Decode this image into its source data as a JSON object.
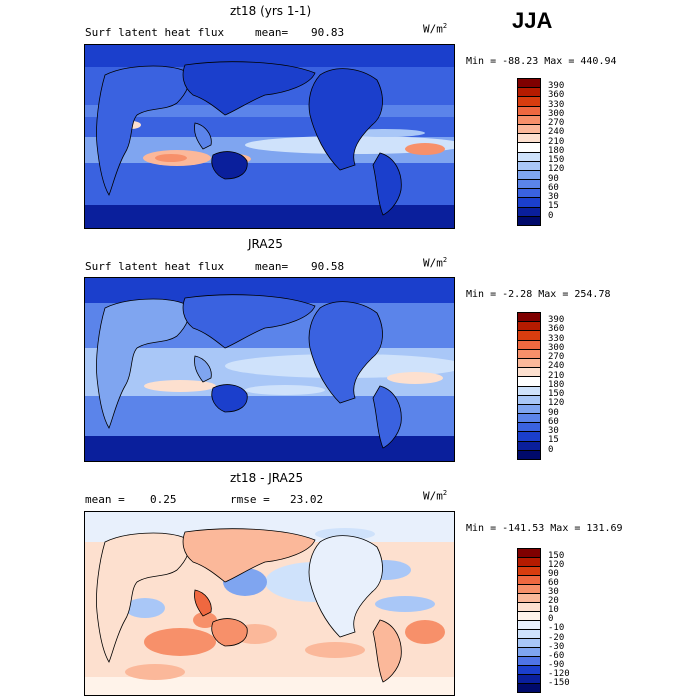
{
  "season": "JJA",
  "panels": [
    {
      "title": "zt18 (yrs 1-1)",
      "left_label": "Surf latent heat flux",
      "stat_label": "mean=",
      "stat_value": "90.83",
      "units": "W/m",
      "units_sup": "2",
      "minmax": "Min = -88.23 Max = 440.94",
      "legend": [
        "390",
        "360",
        "330",
        "300",
        "270",
        "240",
        "210",
        "180",
        "150",
        "120",
        "90",
        "60",
        "30",
        "15",
        "0"
      ],
      "colors": [
        "#7f0000",
        "#b51b00",
        "#d83d0f",
        "#ef6840",
        "#f7906a",
        "#fbb89a",
        "#fde0cf",
        "#ffffff",
        "#cfe2fb",
        "#a9c7f7",
        "#7fa5f0",
        "#5b84ea",
        "#3a62e0",
        "#1b3fcc",
        "#0a1f9c",
        "#000a6b"
      ]
    },
    {
      "title": "JRA25",
      "left_label": "Surf latent heat flux",
      "stat_label": "mean=",
      "stat_value": "90.58",
      "units": "W/m",
      "units_sup": "2",
      "minmax": "Min =  -2.28 Max = 254.78",
      "legend": [
        "390",
        "360",
        "330",
        "300",
        "270",
        "240",
        "210",
        "180",
        "150",
        "120",
        "90",
        "60",
        "30",
        "15",
        "0"
      ],
      "colors": [
        "#7f0000",
        "#b51b00",
        "#d83d0f",
        "#ef6840",
        "#f7906a",
        "#fbb89a",
        "#fde0cf",
        "#ffffff",
        "#cfe2fb",
        "#a9c7f7",
        "#7fa5f0",
        "#5b84ea",
        "#3a62e0",
        "#1b3fcc",
        "#0a1f9c",
        "#000a6b"
      ]
    },
    {
      "title": "zt18 - JRA25",
      "left_label": "mean =",
      "left_value": "0.25",
      "stat_label": "rmse =",
      "stat_value": "23.02",
      "units": "W/m",
      "units_sup": "2",
      "minmax": "Min = -141.53 Max = 131.69",
      "legend": [
        "150",
        "120",
        "90",
        "60",
        "30",
        "20",
        "10",
        "0",
        "-10",
        "-20",
        "-30",
        "-60",
        "-90",
        "-120",
        "-150"
      ],
      "colors": [
        "#7f0000",
        "#b51b00",
        "#d83d0f",
        "#ef6840",
        "#f7906a",
        "#fbb89a",
        "#fde0cf",
        "#fff3ea",
        "#e8f0fc",
        "#cfe2fb",
        "#a9c7f7",
        "#7fa5f0",
        "#4f74e6",
        "#1b3fcc",
        "#0a1f9c",
        "#000a6b"
      ]
    }
  ]
}
